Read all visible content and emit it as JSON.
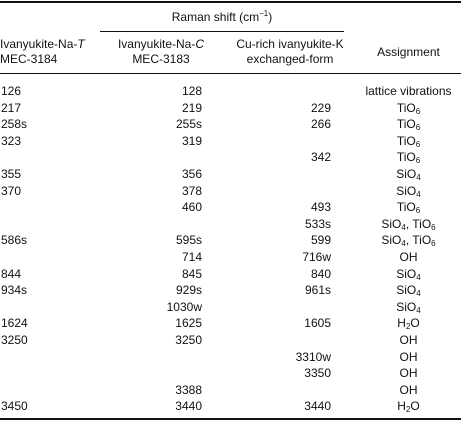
{
  "header": {
    "group": {
      "prefix": "Raman shift (cm",
      "sup": "−1",
      "suffix": ")"
    },
    "col1": {
      "name_a": "Ivanyukite-Na-",
      "name_b": "T",
      "code": "MEC-3184"
    },
    "col2": {
      "name_a": "Ivanyukite-Na-",
      "name_b": "C",
      "code": "MEC-3183"
    },
    "col3": {
      "line1": "Cu-rich ivanyukite-K",
      "line2": "exchanged-form"
    },
    "col4": {
      "label": "Assignment"
    }
  },
  "rows": [
    {
      "c1": "126",
      "c2": "128",
      "c3": "",
      "a": "lattice vibrations"
    },
    {
      "c1": "217",
      "c2": "219",
      "c3": "229",
      "a": "TiO",
      "s": "6"
    },
    {
      "c1": "258s",
      "c2": "255s",
      "c3": "266",
      "a": "TiO",
      "s": "6"
    },
    {
      "c1": "323",
      "c2": "319",
      "c3": "",
      "a": "TiO",
      "s": "6"
    },
    {
      "c1": "",
      "c2": "",
      "c3": "342",
      "a": "TiO",
      "s": "6"
    },
    {
      "c1": "355",
      "c2": "356",
      "c3": "",
      "a": "SiO",
      "s": "4"
    },
    {
      "c1": "370",
      "c2": "378",
      "c3": "",
      "a": "SiO",
      "s": "4"
    },
    {
      "c1": "",
      "c2": "460",
      "c3": "493",
      "a": "TiO",
      "s": "6"
    },
    {
      "c1": "",
      "c2": "",
      "c3": "533s",
      "a": "SiO",
      "s": "4",
      "a2": ", TiO",
      "s2": "6"
    },
    {
      "c1": "586s",
      "c2": "595s",
      "c3": "599",
      "a": "SiO",
      "s": "4",
      "a2": ", TiO",
      "s2": "6"
    },
    {
      "c1": "",
      "c2": "714",
      "c3": "716w",
      "a": "OH"
    },
    {
      "c1": "844",
      "c2": "845",
      "c3": "840",
      "a": "SiO",
      "s": "4"
    },
    {
      "c1": "934s",
      "c2": "929s",
      "c3": "961s",
      "a": "SiO",
      "s": "4"
    },
    {
      "c1": "",
      "c2": "1030w",
      "c3": "",
      "a": "SiO",
      "s": "4"
    },
    {
      "c1": "1624",
      "c2": "1625",
      "c3": "1605",
      "a": "H",
      "s": "2",
      "a2": "O"
    },
    {
      "c1": "3250",
      "c2": "3250",
      "c3": "",
      "a": "OH"
    },
    {
      "c1": "",
      "c2": "",
      "c3": "3310w",
      "a": "OH"
    },
    {
      "c1": "",
      "c2": "",
      "c3": "3350",
      "a": "OH"
    },
    {
      "c1": "",
      "c2": "3388",
      "c3": "",
      "a": "OH"
    },
    {
      "c1": "3450",
      "c2": "3440",
      "c3": "3440",
      "a": "H",
      "s": "2",
      "a2": "O"
    }
  ]
}
